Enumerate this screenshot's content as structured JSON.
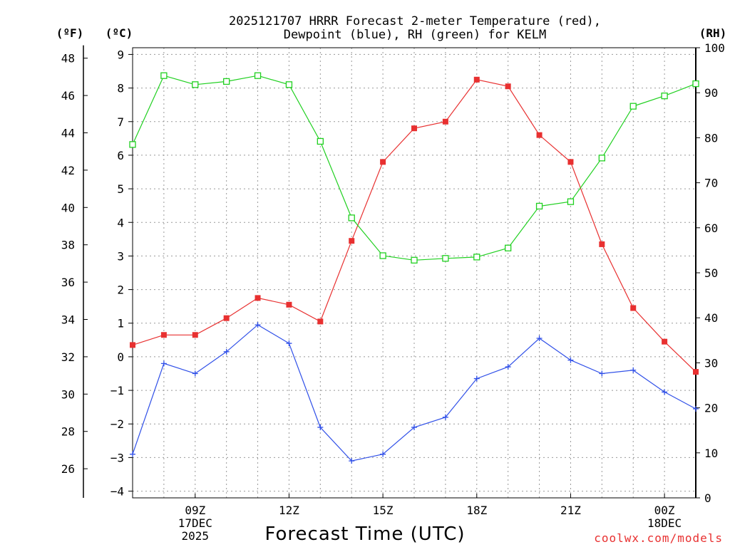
{
  "chart_data": {
    "type": "line",
    "title_lines": [
      "2025121707 HRRR Forecast 2-meter Temperature (red),",
      "Dewpoint (blue), RH (green) for KELM"
    ],
    "units": {
      "fahrenheit": "(ºF)",
      "celsius": "(ºC)",
      "rh": "(RH)"
    },
    "xlabel": "Forecast Time (UTC)",
    "credit": "coolwx.com/models",
    "x_hours": [
      7,
      8,
      9,
      10,
      11,
      12,
      13,
      14,
      15,
      16,
      17,
      18,
      19,
      20,
      21,
      22,
      23,
      24,
      25
    ],
    "x_range": [
      7,
      25
    ],
    "x_ticks": [
      {
        "hour": 9,
        "lines": [
          "09Z",
          "17DEC",
          "2025"
        ]
      },
      {
        "hour": 12,
        "lines": [
          "12Z"
        ]
      },
      {
        "hour": 15,
        "lines": [
          "15Z"
        ]
      },
      {
        "hour": 18,
        "lines": [
          "18Z"
        ]
      },
      {
        "hour": 21,
        "lines": [
          "21Z"
        ]
      },
      {
        "hour": 24,
        "lines": [
          "00Z",
          "18DEC"
        ]
      }
    ],
    "celsius_axis": {
      "range": [
        -4.2,
        9.2
      ],
      "ticks": [
        -4,
        -3,
        -2,
        -1,
        0,
        1,
        2,
        3,
        4,
        5,
        6,
        7,
        8,
        9
      ]
    },
    "fahrenheit_axis": {
      "ticks": [
        26,
        28,
        30,
        32,
        34,
        36,
        38,
        40,
        42,
        44,
        46,
        48
      ]
    },
    "rh_axis": {
      "range": [
        0,
        100
      ],
      "ticks": [
        0,
        10,
        20,
        30,
        40,
        50,
        60,
        70,
        80,
        90,
        100
      ]
    },
    "series": [
      {
        "name": "Temperature",
        "axis": "celsius",
        "color": "#e83030",
        "marker": "filled-square",
        "values": [
          0.35,
          0.65,
          0.65,
          1.15,
          1.75,
          1.55,
          1.05,
          3.45,
          5.8,
          6.8,
          7.0,
          8.25,
          8.05,
          6.6,
          5.8,
          3.35,
          1.45,
          0.45,
          -0.45
        ]
      },
      {
        "name": "Dewpoint",
        "axis": "celsius",
        "color": "#3050e8",
        "marker": "plus",
        "values": [
          -2.9,
          -0.2,
          -0.5,
          0.15,
          0.95,
          0.4,
          -2.1,
          -3.1,
          -2.9,
          -2.1,
          -1.8,
          -0.65,
          -0.3,
          0.55,
          -0.1,
          -0.5,
          -0.4,
          -1.05,
          -1.55
        ]
      },
      {
        "name": "RH",
        "axis": "rh",
        "color": "#20d020",
        "marker": "open-square",
        "values": [
          78.5,
          93.8,
          91.8,
          92.5,
          93.8,
          91.8,
          79.2,
          62.2,
          53.8,
          52.8,
          53.2,
          53.5,
          55.5,
          64.8,
          65.8,
          75.5,
          87.0,
          89.3,
          92.0
        ]
      }
    ]
  }
}
